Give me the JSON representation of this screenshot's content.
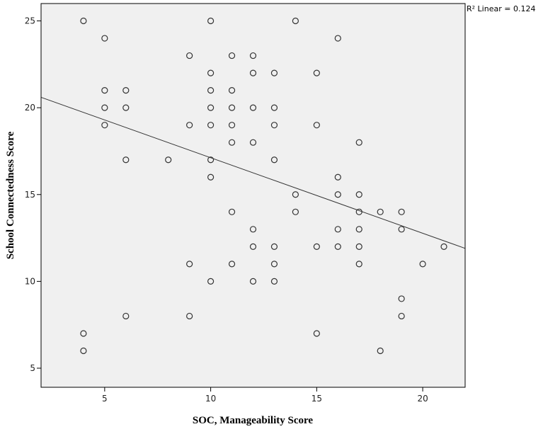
{
  "chart_data": {
    "type": "scatter",
    "x_label": "SOC, Manageability Score",
    "y_label": "School Connectedness Score",
    "annotation": "R² Linear = 0.124",
    "x": [
      4,
      4,
      4,
      5,
      5,
      5,
      5,
      6,
      6,
      6,
      6,
      8,
      9,
      9,
      9,
      9,
      10,
      10,
      10,
      10,
      10,
      10,
      10,
      10,
      11,
      11,
      11,
      11,
      11,
      11,
      11,
      12,
      12,
      12,
      12,
      12,
      12,
      12,
      13,
      13,
      13,
      13,
      13,
      13,
      13,
      14,
      14,
      14,
      15,
      15,
      15,
      15,
      16,
      16,
      16,
      16,
      16,
      17,
      17,
      17,
      17,
      17,
      17,
      18,
      18,
      19,
      19,
      19,
      19,
      20,
      21
    ],
    "values": [
      25,
      7,
      6,
      24,
      21,
      20,
      19,
      21,
      20,
      17,
      8,
      17,
      23,
      19,
      11,
      8,
      25,
      22,
      21,
      20,
      19,
      17,
      16,
      10,
      23,
      21,
      20,
      19,
      18,
      14,
      11,
      23,
      22,
      20,
      18,
      13,
      12,
      10,
      22,
      20,
      19,
      17,
      12,
      11,
      10,
      25,
      15,
      14,
      22,
      19,
      12,
      7,
      24,
      16,
      15,
      13,
      12,
      18,
      15,
      14,
      13,
      12,
      11,
      14,
      6,
      14,
      13,
      9,
      8,
      11,
      12
    ],
    "color": "#333333",
    "plot_background": "#f0f0f0",
    "fit_line": {
      "x": [
        2,
        22
      ],
      "y": [
        20.6,
        11.9
      ],
      "color": "#333333"
    },
    "xlim": [
      2,
      22
    ],
    "xticks": [
      5,
      10,
      15,
      20
    ],
    "ylim": [
      3.9,
      26
    ],
    "yticks": [
      5,
      10,
      15,
      20,
      25
    ]
  }
}
